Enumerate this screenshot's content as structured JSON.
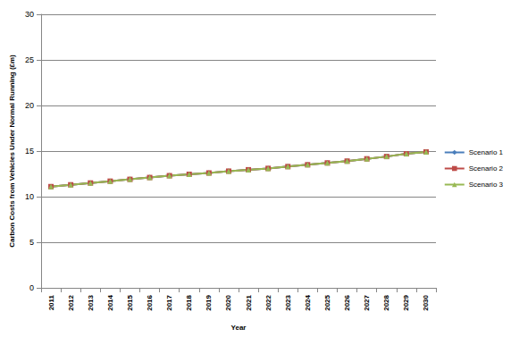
{
  "chart_data": {
    "type": "line",
    "x_label": "Year",
    "y_label": "Carbon Costs from Vehicles Under Normal Running (£m)",
    "categories": [
      "2011",
      "2012",
      "2013",
      "2014",
      "2015",
      "2016",
      "2017",
      "2018",
      "2019",
      "2020",
      "2021",
      "2022",
      "2023",
      "2024",
      "2025",
      "2026",
      "2027",
      "2028",
      "2029",
      "2030"
    ],
    "series": [
      {
        "name": "Scenario 1",
        "color": "#4a7ebb",
        "marker": "diamond",
        "values": [
          11.1,
          11.3,
          11.5,
          11.7,
          11.9,
          12.1,
          12.3,
          12.45,
          12.6,
          12.8,
          12.95,
          13.1,
          13.3,
          13.5,
          13.7,
          13.9,
          14.15,
          14.4,
          14.7,
          14.9
        ]
      },
      {
        "name": "Scenario 2",
        "color": "#be4b48",
        "marker": "square",
        "values": [
          11.1,
          11.3,
          11.5,
          11.7,
          11.9,
          12.1,
          12.3,
          12.45,
          12.6,
          12.8,
          12.95,
          13.1,
          13.3,
          13.5,
          13.7,
          13.9,
          14.15,
          14.4,
          14.7,
          14.9
        ]
      },
      {
        "name": "Scenario 3",
        "color": "#98b954",
        "marker": "triangle",
        "values": [
          11.1,
          11.3,
          11.5,
          11.7,
          11.9,
          12.1,
          12.3,
          12.45,
          12.6,
          12.8,
          12.95,
          13.1,
          13.3,
          13.5,
          13.7,
          13.9,
          14.15,
          14.4,
          14.7,
          14.9
        ]
      }
    ],
    "ylim": [
      0,
      30
    ],
    "yticks": [
      0,
      5,
      10,
      15,
      20,
      25,
      30
    ],
    "grid": true,
    "legend": "right"
  }
}
